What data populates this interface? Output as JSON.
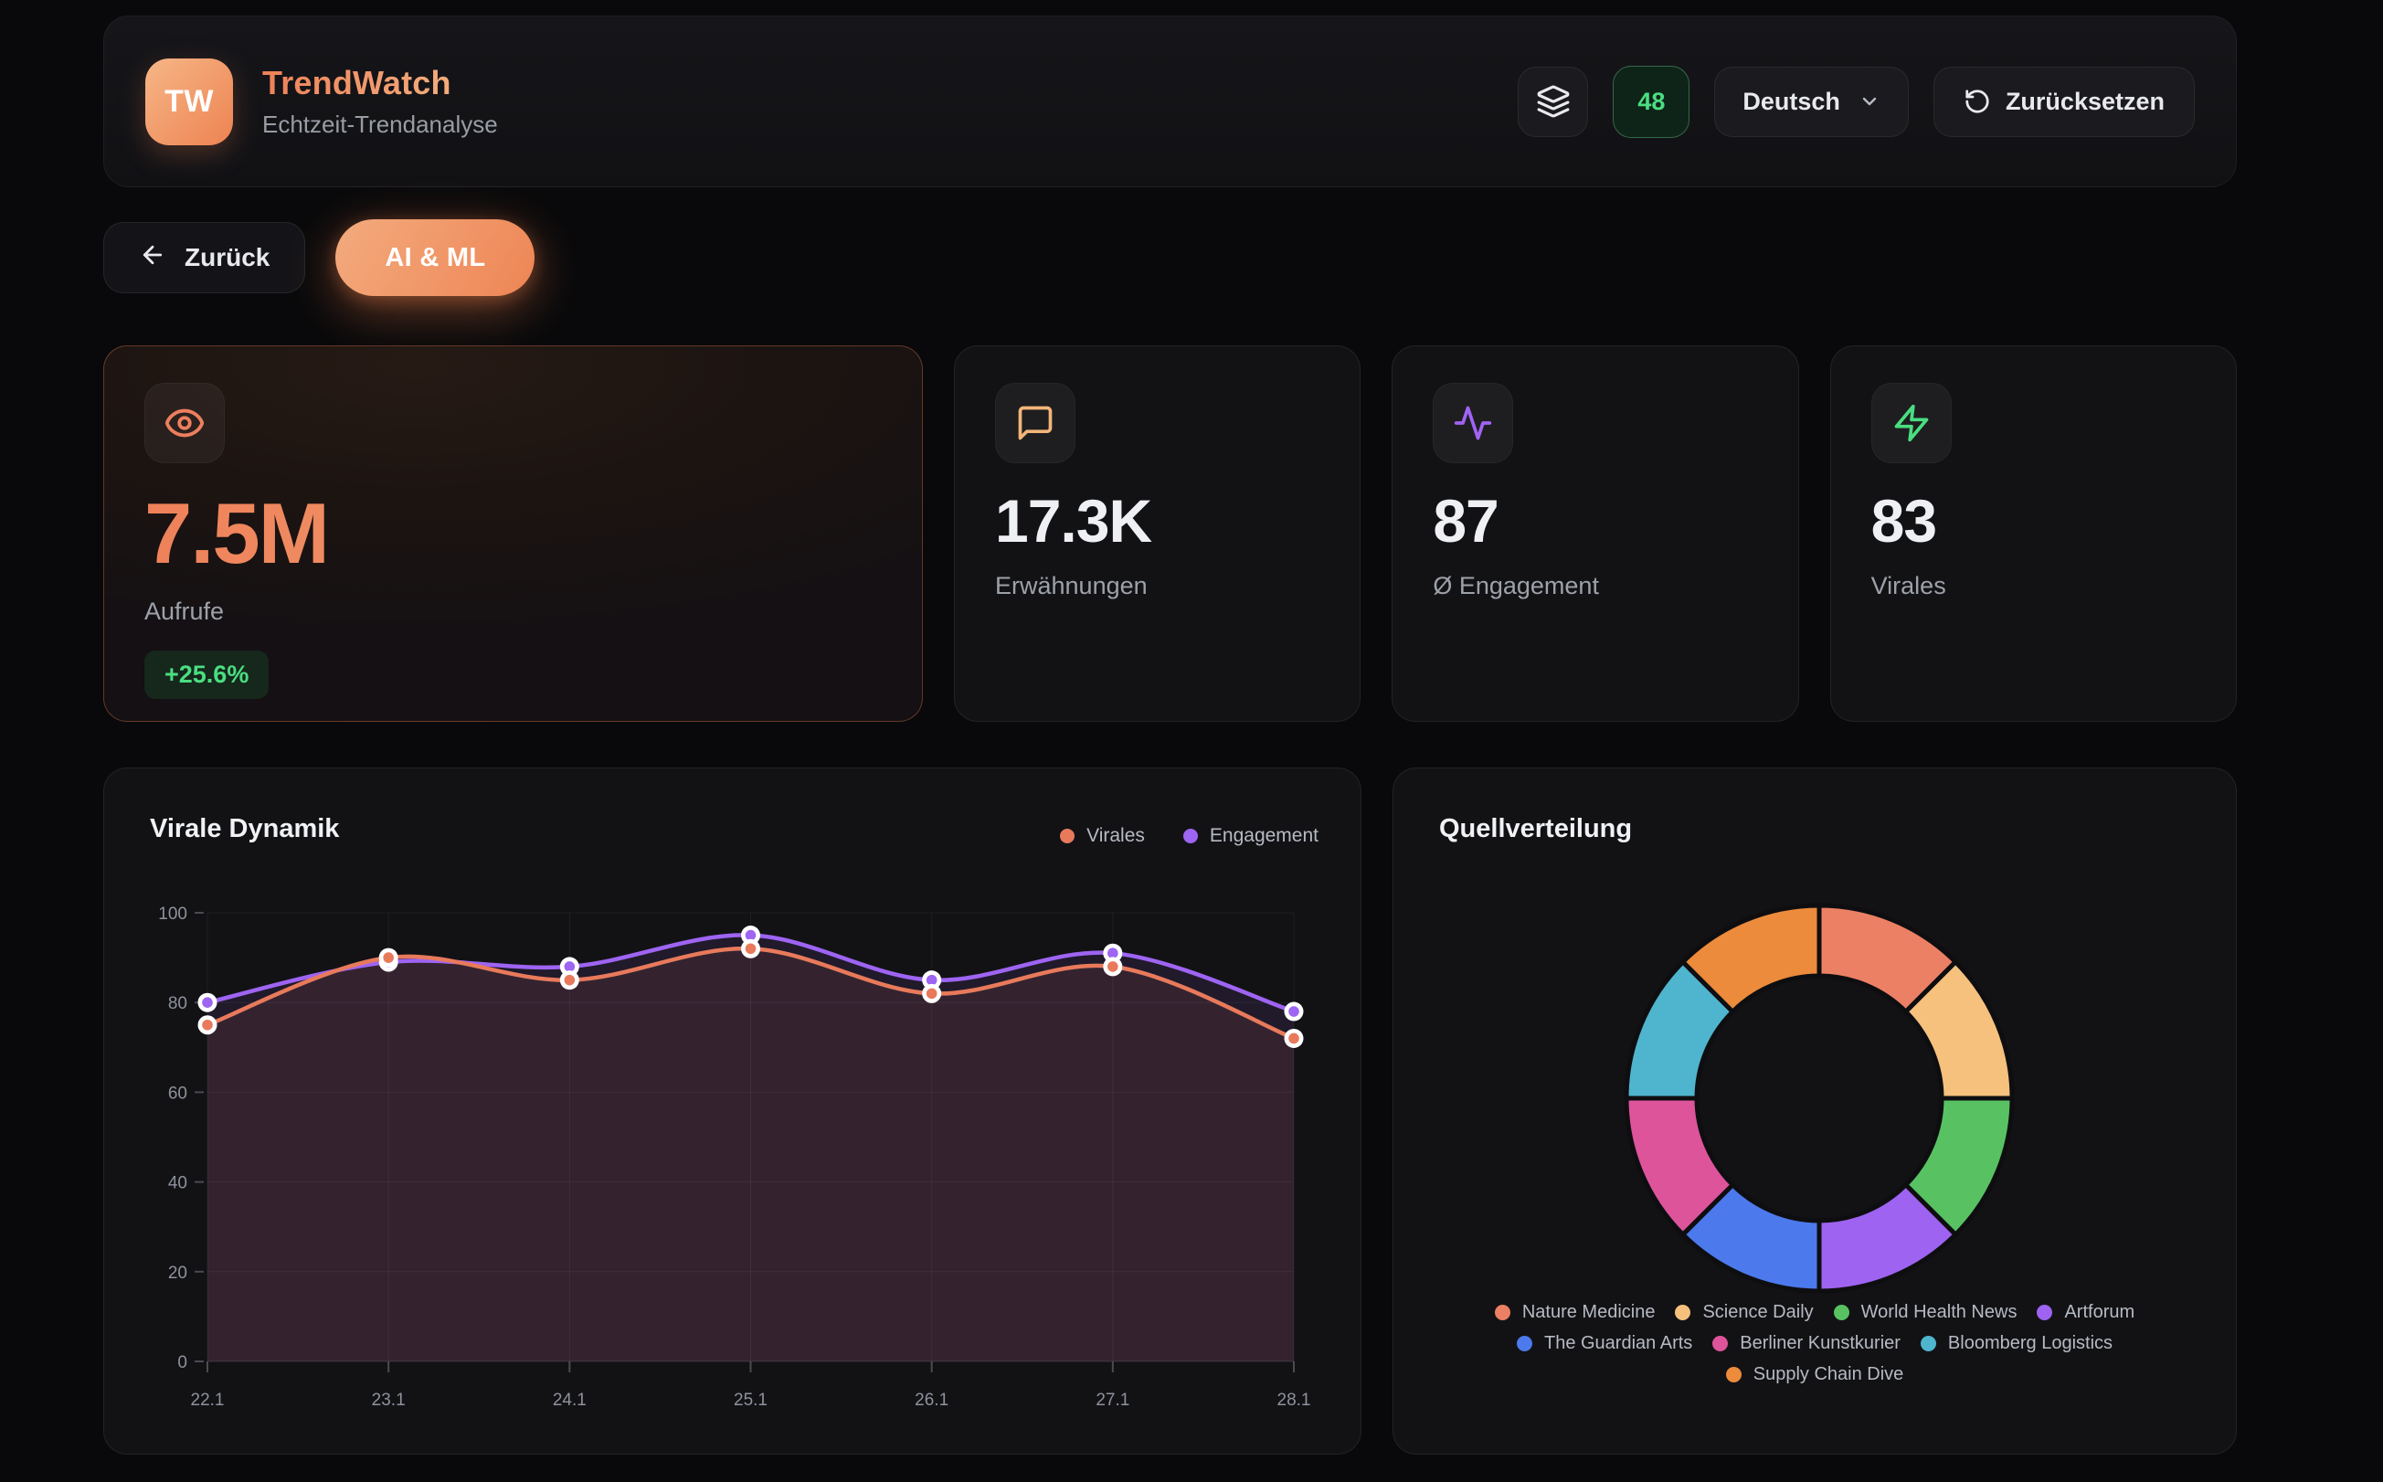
{
  "app": {
    "logo_text": "TW",
    "title": "TrendWatch",
    "subtitle": "Echtzeit-Trendanalyse"
  },
  "header": {
    "counter_badge": "48",
    "language": "Deutsch",
    "reset_label": "Zurücksetzen"
  },
  "toolbar": {
    "back_label": "Zurück",
    "topic_chip": "AI & ML"
  },
  "stats": [
    {
      "value": "7.5M",
      "label": "Aufrufe",
      "delta": "+25.6%",
      "icon": "eye-icon",
      "icon_color": "#ED7F5E"
    },
    {
      "value": "17.3K",
      "label": "Erwähnungen",
      "icon": "chat-bubble-icon",
      "icon_color": "#F2B579"
    },
    {
      "value": "87",
      "label": "Ø Engagement",
      "icon": "activity-icon",
      "icon_color": "#A163F5"
    },
    {
      "value": "83",
      "label": "Virales",
      "icon": "zap-icon",
      "icon_color": "#4ADE80"
    }
  ],
  "theme": {
    "accent_gradient_start": "#F5B285",
    "accent_gradient_end": "#EE8352",
    "positive_green": "#4ADE80",
    "badge_green_text": "#4ADE80",
    "card_bg": "#121215",
    "page_bg": "#09090B"
  },
  "chart_data": [
    {
      "type": "line",
      "title": "Virale Dynamik",
      "x": [
        "22.1",
        "23.1",
        "24.1",
        "25.1",
        "26.1",
        "27.1",
        "28.1"
      ],
      "series": [
        {
          "name": "Virales",
          "color": "#E87A5B",
          "values": [
            75,
            90,
            85,
            92,
            82,
            88,
            72
          ]
        },
        {
          "name": "Engagement",
          "color": "#9E64F2",
          "values": [
            80,
            89,
            88,
            95,
            85,
            91,
            78
          ]
        }
      ],
      "ylim": [
        0,
        100
      ],
      "yticks": [
        0,
        20,
        40,
        60,
        80,
        100
      ],
      "grid": true,
      "area_fill": true,
      "legend_position": "top-right"
    },
    {
      "type": "donut",
      "title": "Quellverteilung",
      "categories": [
        "Nature Medicine",
        "Science Daily",
        "World Health News",
        "Artforum",
        "The Guardian Arts",
        "Berliner Kunstkurier",
        "Bloomberg Logistics",
        "Supply Chain Dive"
      ],
      "values": [
        12.5,
        12.5,
        12.5,
        12.5,
        12.5,
        12.5,
        12.5,
        12.5
      ],
      "colors": [
        "#EC8064",
        "#F5C17D",
        "#58C263",
        "#9E63F1",
        "#4C79EB",
        "#DD549B",
        "#4FB5CE",
        "#EC8B3B"
      ],
      "legend_position": "bottom"
    }
  ]
}
